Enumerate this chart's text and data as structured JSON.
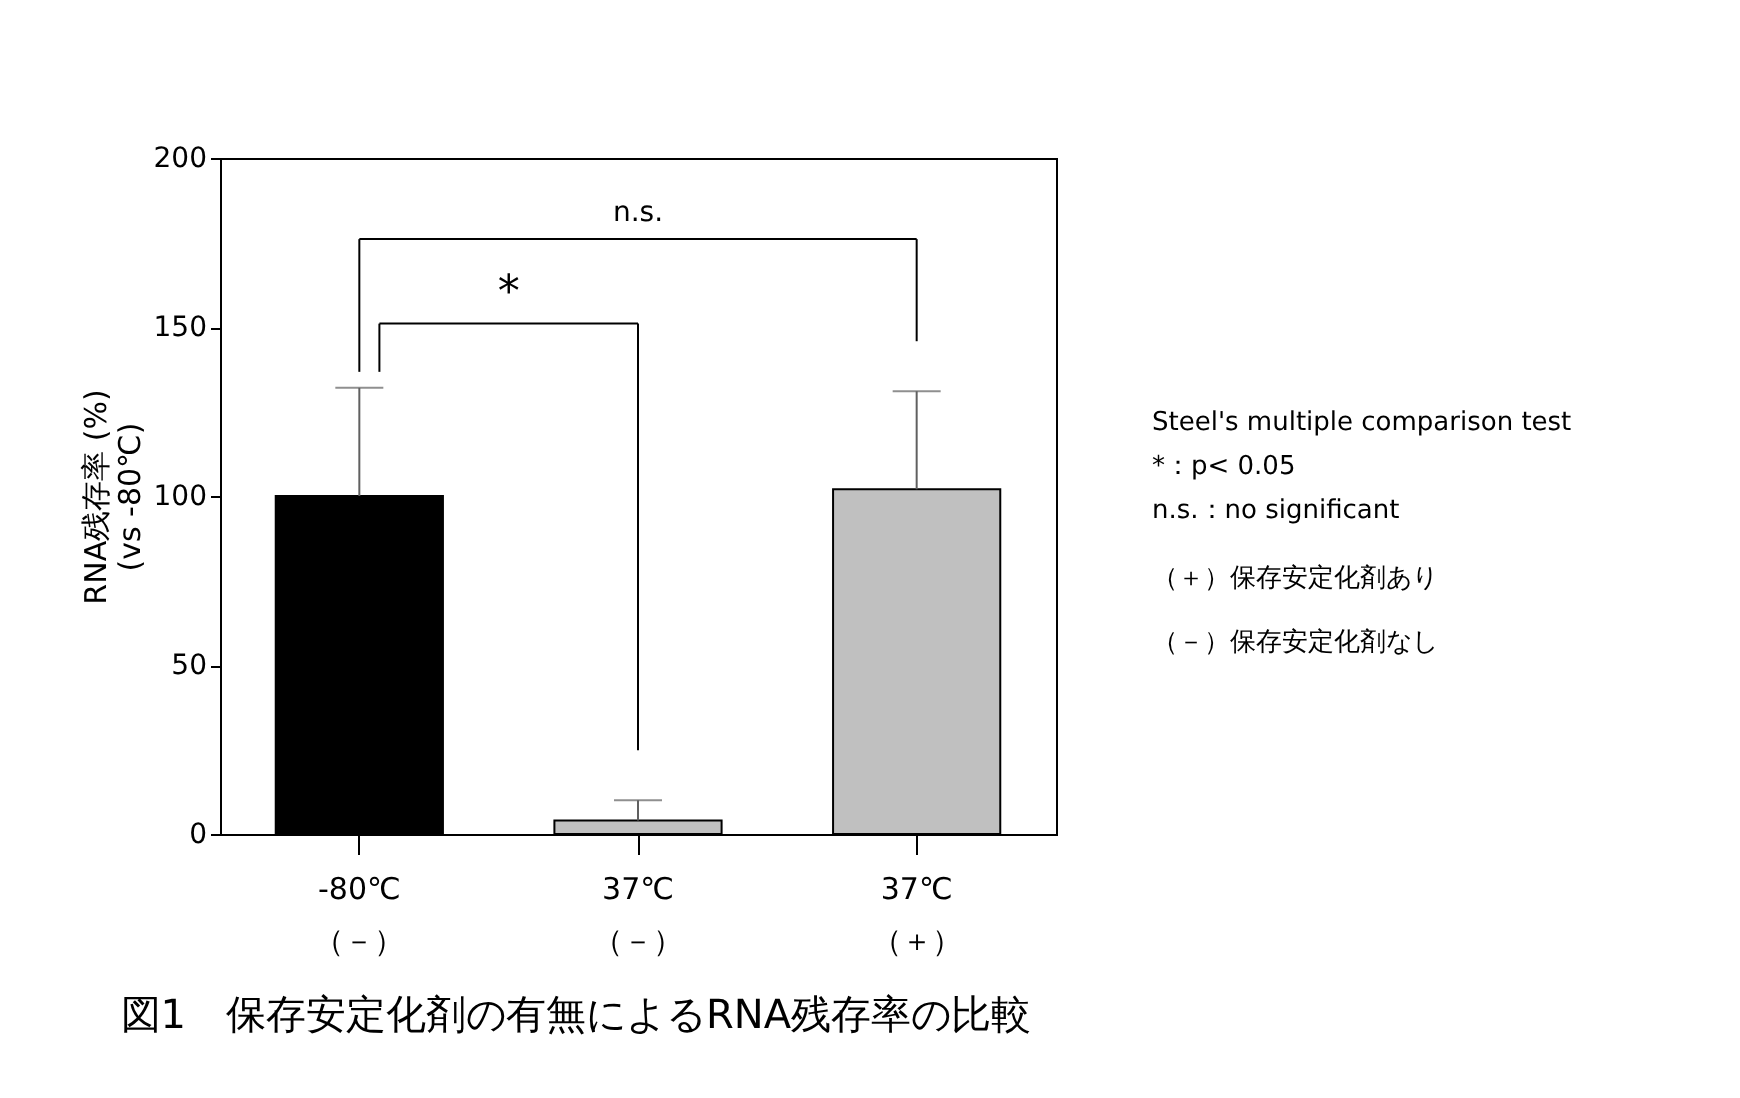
{
  "chart_data": {
    "type": "bar",
    "title": "図1　保存安定化剤の有無によるRNA残存率の比較",
    "ylabel": "RNA残存率 (%)\n(vs -80℃)",
    "categories": [
      "-80℃\n（－）",
      "37℃\n（－）",
      "37℃\n（＋）"
    ],
    "values": [
      100,
      4,
      102
    ],
    "colors": [
      "#000000",
      "#c0c0c0",
      "#c0c0c0"
    ],
    "errors": [
      [
        100,
        132
      ],
      [
        4,
        10
      ],
      [
        102,
        131
      ]
    ],
    "ylim": [
      0,
      200
    ],
    "yticks": [
      0,
      50,
      100,
      150,
      200
    ],
    "grid": false,
    "annotations": [
      "n.s.",
      "*",
      "Steel's multiple comparison test",
      "*：p< 0.05",
      "n.s.：no significant",
      "（＋）保存安定化剤あり",
      "（－）保存安定化剤なし"
    ]
  }
}
